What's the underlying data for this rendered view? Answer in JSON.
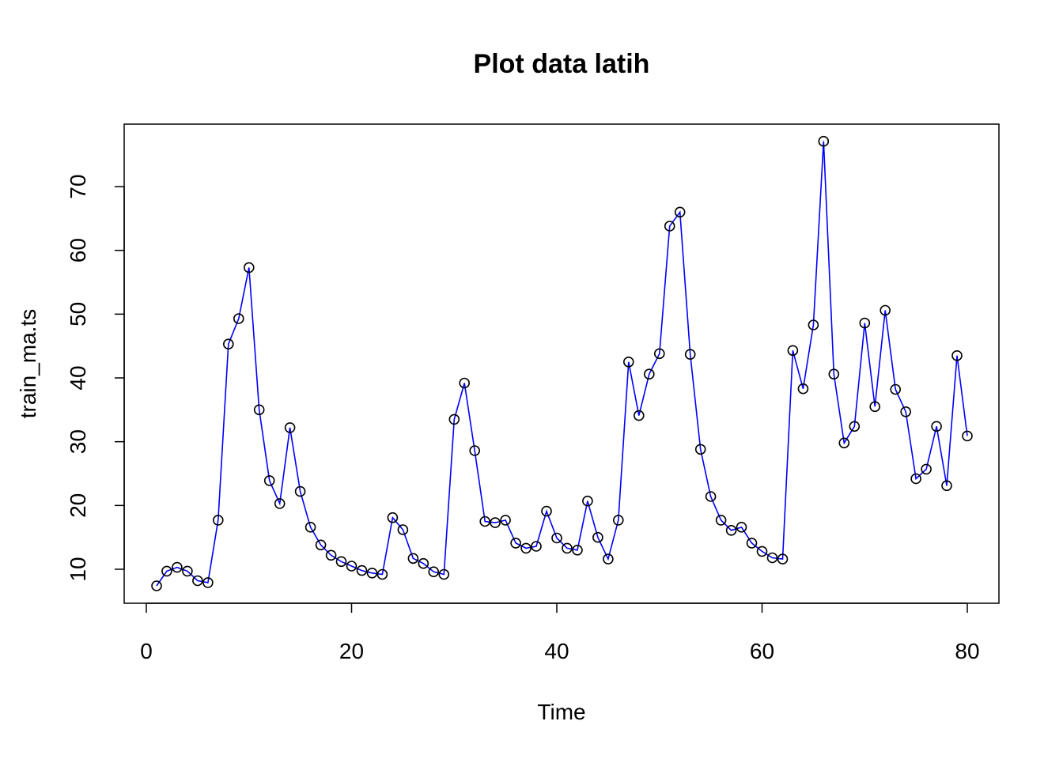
{
  "chart_data": {
    "type": "line",
    "title": "Plot data latih",
    "xlabel": "Time",
    "ylabel": "train_ma.ts",
    "xlim": [
      0,
      80
    ],
    "ylim": [
      10,
      70
    ],
    "x_ticks": [
      0,
      20,
      40,
      60,
      80
    ],
    "y_ticks": [
      10,
      20,
      30,
      40,
      50,
      60,
      70
    ],
    "grid": false,
    "legend": "none",
    "series_color": "#0000ff",
    "marker_color": "#000000",
    "marker": "open-circle",
    "series": [
      {
        "x": [
          1,
          2,
          3,
          4,
          5,
          6,
          7,
          8,
          9,
          10,
          11,
          12,
          13,
          14,
          15,
          16,
          17,
          18,
          19,
          20,
          21,
          22,
          23,
          24,
          25,
          26,
          27,
          28,
          29,
          30,
          31,
          32,
          33,
          34,
          35,
          36,
          37,
          38,
          39,
          40,
          41,
          42,
          43,
          44,
          45,
          46,
          47,
          48,
          49,
          50,
          51,
          52,
          53,
          54,
          55,
          56,
          57,
          58,
          59,
          60,
          61,
          62,
          63,
          64,
          65,
          66,
          67,
          68,
          69,
          70,
          71,
          72,
          73,
          74,
          75,
          76,
          77,
          78,
          79,
          80
        ],
        "values": [
          7.4,
          9.7,
          10.3,
          9.7,
          8.2,
          7.9,
          17.7,
          45.3,
          49.3,
          57.3,
          35.0,
          23.9,
          20.3,
          32.2,
          22.2,
          16.6,
          13.8,
          12.2,
          11.2,
          10.5,
          9.8,
          9.4,
          9.2,
          18.1,
          16.2,
          11.7,
          10.9,
          9.6,
          9.2,
          33.5,
          39.2,
          28.6,
          17.5,
          17.3,
          17.7,
          14.1,
          13.3,
          13.6,
          19.1,
          14.9,
          13.3,
          13.0,
          20.7,
          15.0,
          11.6,
          17.7,
          42.5,
          34.1,
          40.6,
          43.8,
          63.8,
          66.0,
          43.7,
          28.8,
          21.4,
          17.7,
          16.1,
          16.6,
          14.1,
          12.8,
          11.8,
          11.6,
          44.3,
          38.3,
          48.3,
          77.1,
          40.6,
          29.8,
          32.4,
          48.6,
          35.5,
          50.6,
          38.2,
          34.7,
          24.2,
          25.7,
          32.4,
          23.1,
          43.5,
          30.9
        ]
      }
    ]
  }
}
